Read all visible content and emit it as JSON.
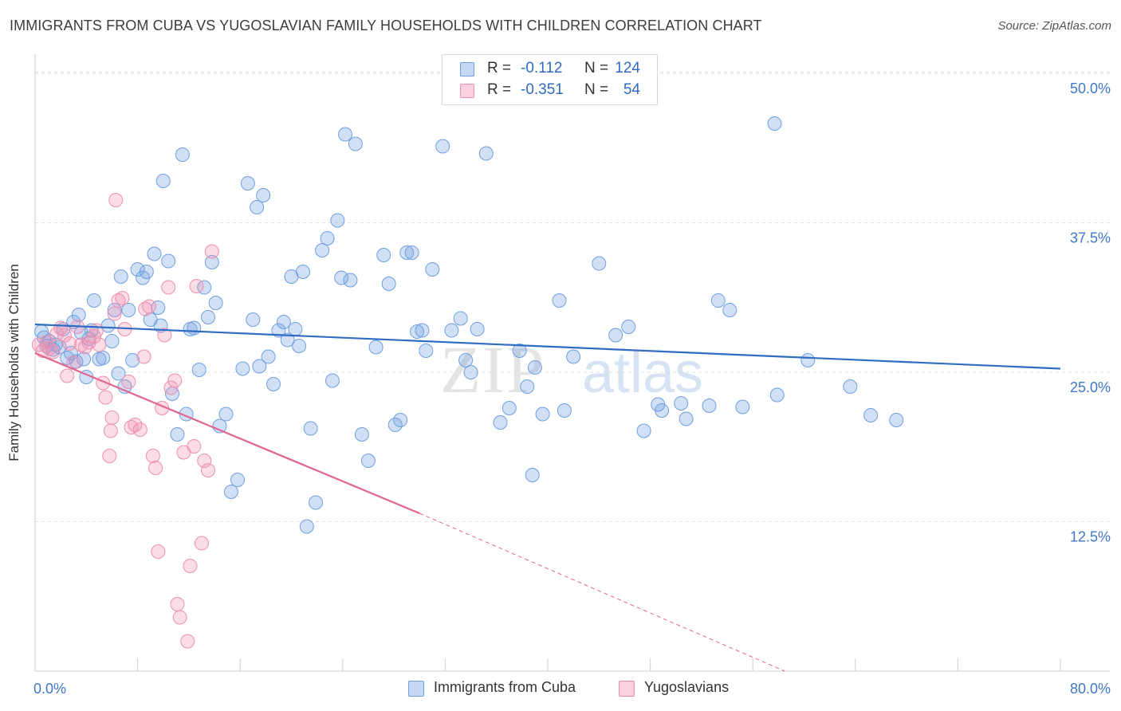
{
  "title": "IMMIGRANTS FROM CUBA VS YUGOSLAVIAN FAMILY HOUSEHOLDS WITH CHILDREN CORRELATION CHART",
  "source": "Source: ZipAtlas.com",
  "watermark": {
    "zip": "ZIP",
    "atlas": "atlas"
  },
  "stats": [
    {
      "r_label": "R =",
      "r_value": "-0.112",
      "n_label": "N =",
      "n_value": "124",
      "color": "#6fa0e0"
    },
    {
      "r_label": "R =",
      "r_value": "-0.351",
      "n_label": "N =",
      "n_value": "54",
      "color": "#ee8fb0"
    }
  ],
  "legend": [
    {
      "label": "Immigrants from Cuba",
      "color": "#6fa0e0"
    },
    {
      "label": "Yugoslavians",
      "color": "#ee8fb0"
    }
  ],
  "chart_data": {
    "type": "scatter",
    "xlabel": "",
    "ylabel": "Family Households with Children",
    "xlim": [
      0,
      80
    ],
    "ylim": [
      0,
      52
    ],
    "x_tick_labels": [
      {
        "value": 0,
        "label": "0.0%"
      },
      {
        "value": 80,
        "label": "80.0%"
      }
    ],
    "x_minor_ticks": [
      0,
      8,
      16,
      24,
      32,
      40,
      48,
      56,
      64,
      72,
      80
    ],
    "y_ticks": [
      {
        "value": 12.5,
        "label": "12.5%"
      },
      {
        "value": 25,
        "label": "25.0%"
      },
      {
        "value": 37.5,
        "label": "37.5%"
      },
      {
        "value": 50,
        "label": "50.0%"
      }
    ],
    "grid": true,
    "legend_position": "bottom",
    "series": [
      {
        "name": "Immigrants from Cuba",
        "color": "#6fa0e0",
        "line_color": "#2f6cc2",
        "trend": {
          "x": [
            0,
            80
          ],
          "y": [
            29.0,
            25.3
          ]
        },
        "points": [
          [
            0.5,
            28.4
          ],
          [
            0.7,
            27.9
          ],
          [
            0.9,
            27.2
          ],
          [
            1.1,
            27.6
          ],
          [
            1.4,
            26.9
          ],
          [
            1.6,
            27.3
          ],
          [
            1.9,
            27.1
          ],
          [
            2.2,
            28.6
          ],
          [
            2.5,
            26.2
          ],
          [
            2.8,
            26.6
          ],
          [
            3.0,
            29.2
          ],
          [
            3.2,
            25.9
          ],
          [
            3.4,
            29.8
          ],
          [
            3.6,
            28.3
          ],
          [
            3.8,
            26.1
          ],
          [
            4.0,
            24.6
          ],
          [
            4.2,
            27.8
          ],
          [
            4.4,
            28.5
          ],
          [
            4.6,
            31.0
          ],
          [
            5.0,
            26.1
          ],
          [
            5.3,
            26.2
          ],
          [
            5.7,
            28.9
          ],
          [
            6.0,
            27.6
          ],
          [
            6.2,
            30.2
          ],
          [
            6.5,
            24.9
          ],
          [
            6.7,
            33.0
          ],
          [
            7.0,
            23.8
          ],
          [
            7.3,
            30.2
          ],
          [
            7.6,
            26.0
          ],
          [
            8.0,
            33.6
          ],
          [
            8.4,
            32.9
          ],
          [
            8.7,
            33.4
          ],
          [
            9.0,
            29.4
          ],
          [
            9.3,
            34.9
          ],
          [
            9.6,
            30.4
          ],
          [
            9.8,
            28.9
          ],
          [
            10.0,
            41.0
          ],
          [
            10.4,
            34.3
          ],
          [
            10.7,
            23.2
          ],
          [
            11.1,
            19.8
          ],
          [
            11.5,
            43.2
          ],
          [
            11.8,
            21.5
          ],
          [
            12.1,
            28.6
          ],
          [
            12.4,
            28.7
          ],
          [
            12.8,
            25.2
          ],
          [
            13.2,
            32.1
          ],
          [
            13.5,
            29.6
          ],
          [
            13.8,
            34.2
          ],
          [
            14.1,
            30.8
          ],
          [
            14.4,
            20.5
          ],
          [
            14.9,
            21.5
          ],
          [
            15.3,
            15.0
          ],
          [
            15.8,
            16.0
          ],
          [
            16.2,
            25.3
          ],
          [
            16.6,
            40.8
          ],
          [
            17.0,
            29.4
          ],
          [
            17.3,
            38.8
          ],
          [
            17.5,
            25.5
          ],
          [
            17.8,
            39.8
          ],
          [
            18.2,
            26.3
          ],
          [
            18.6,
            24.0
          ],
          [
            19.0,
            28.5
          ],
          [
            19.4,
            29.2
          ],
          [
            19.7,
            27.7
          ],
          [
            20.0,
            33.0
          ],
          [
            20.3,
            28.6
          ],
          [
            20.6,
            27.2
          ],
          [
            20.9,
            33.4
          ],
          [
            21.2,
            12.1
          ],
          [
            21.5,
            20.3
          ],
          [
            21.9,
            14.1
          ],
          [
            22.4,
            35.2
          ],
          [
            22.8,
            36.2
          ],
          [
            23.2,
            24.3
          ],
          [
            23.6,
            37.7
          ],
          [
            23.9,
            32.9
          ],
          [
            24.2,
            44.9
          ],
          [
            24.6,
            32.7
          ],
          [
            25.0,
            44.1
          ],
          [
            25.5,
            19.8
          ],
          [
            26.0,
            17.6
          ],
          [
            26.6,
            27.1
          ],
          [
            27.2,
            34.8
          ],
          [
            27.6,
            32.4
          ],
          [
            28.1,
            20.6
          ],
          [
            28.5,
            21.0
          ],
          [
            29.0,
            35.0
          ],
          [
            29.4,
            35.0
          ],
          [
            29.8,
            28.4
          ],
          [
            30.2,
            28.5
          ],
          [
            30.5,
            26.8
          ],
          [
            31.0,
            33.6
          ],
          [
            31.8,
            43.9
          ],
          [
            32.5,
            28.5
          ],
          [
            33.2,
            29.5
          ],
          [
            33.6,
            26.0
          ],
          [
            34.0,
            25.0
          ],
          [
            34.5,
            28.6
          ],
          [
            35.2,
            43.3
          ],
          [
            36.3,
            20.8
          ],
          [
            37.0,
            22.0
          ],
          [
            37.8,
            26.8
          ],
          [
            38.4,
            23.8
          ],
          [
            38.8,
            16.4
          ],
          [
            39.0,
            25.4
          ],
          [
            39.6,
            21.5
          ],
          [
            40.9,
            31.0
          ],
          [
            41.3,
            21.8
          ],
          [
            42.0,
            26.3
          ],
          [
            44.0,
            34.1
          ],
          [
            45.3,
            28.1
          ],
          [
            46.3,
            28.8
          ],
          [
            47.5,
            20.1
          ],
          [
            48.6,
            22.3
          ],
          [
            48.9,
            21.8
          ],
          [
            50.4,
            22.4
          ],
          [
            50.8,
            21.1
          ],
          [
            52.6,
            22.2
          ],
          [
            53.3,
            31.0
          ],
          [
            54.2,
            30.2
          ],
          [
            55.2,
            22.1
          ],
          [
            57.7,
            45.8
          ],
          [
            57.9,
            23.1
          ],
          [
            60.3,
            26.0
          ],
          [
            63.6,
            23.8
          ],
          [
            65.2,
            21.4
          ],
          [
            67.2,
            21.0
          ]
        ]
      },
      {
        "name": "Yugoslavians",
        "color": "#ee8fb0",
        "line_color": "#e0668f",
        "trend": {
          "x": [
            0,
            30
          ],
          "y": [
            26.6,
            13.2
          ]
        },
        "trend_dashed": {
          "x": [
            30,
            58.5
          ],
          "y": [
            13.2,
            0
          ]
        },
        "points": [
          [
            0.3,
            27.3
          ],
          [
            0.6,
            26.8
          ],
          [
            0.9,
            27.5
          ],
          [
            1.1,
            27.0
          ],
          [
            1.4,
            26.7
          ],
          [
            1.7,
            28.2
          ],
          [
            2.0,
            28.7
          ],
          [
            2.3,
            28.1
          ],
          [
            2.5,
            24.7
          ],
          [
            2.7,
            27.4
          ],
          [
            3.0,
            25.8
          ],
          [
            3.3,
            28.8
          ],
          [
            3.6,
            27.3
          ],
          [
            3.9,
            27.1
          ],
          [
            4.2,
            27.5
          ],
          [
            4.6,
            28.0
          ],
          [
            4.8,
            28.5
          ],
          [
            5.0,
            27.3
          ],
          [
            5.3,
            24.1
          ],
          [
            5.5,
            22.9
          ],
          [
            5.8,
            18.0
          ],
          [
            5.9,
            20.1
          ],
          [
            6.0,
            21.2
          ],
          [
            6.2,
            29.9
          ],
          [
            6.3,
            39.4
          ],
          [
            6.5,
            31.0
          ],
          [
            6.8,
            31.2
          ],
          [
            7.0,
            28.6
          ],
          [
            7.3,
            24.2
          ],
          [
            7.5,
            20.4
          ],
          [
            7.8,
            20.6
          ],
          [
            8.2,
            20.2
          ],
          [
            8.5,
            26.3
          ],
          [
            8.6,
            30.3
          ],
          [
            8.9,
            30.5
          ],
          [
            9.2,
            18.0
          ],
          [
            9.4,
            17.0
          ],
          [
            9.6,
            10.0
          ],
          [
            9.9,
            22.0
          ],
          [
            10.1,
            28.1
          ],
          [
            10.4,
            32.1
          ],
          [
            10.6,
            23.7
          ],
          [
            10.9,
            24.3
          ],
          [
            11.1,
            5.6
          ],
          [
            11.3,
            4.5
          ],
          [
            11.6,
            18.3
          ],
          [
            11.9,
            2.5
          ],
          [
            12.1,
            8.8
          ],
          [
            12.4,
            18.8
          ],
          [
            12.6,
            32.2
          ],
          [
            13.0,
            10.7
          ],
          [
            13.2,
            17.6
          ],
          [
            13.5,
            16.8
          ],
          [
            13.8,
            35.1
          ]
        ]
      }
    ]
  }
}
